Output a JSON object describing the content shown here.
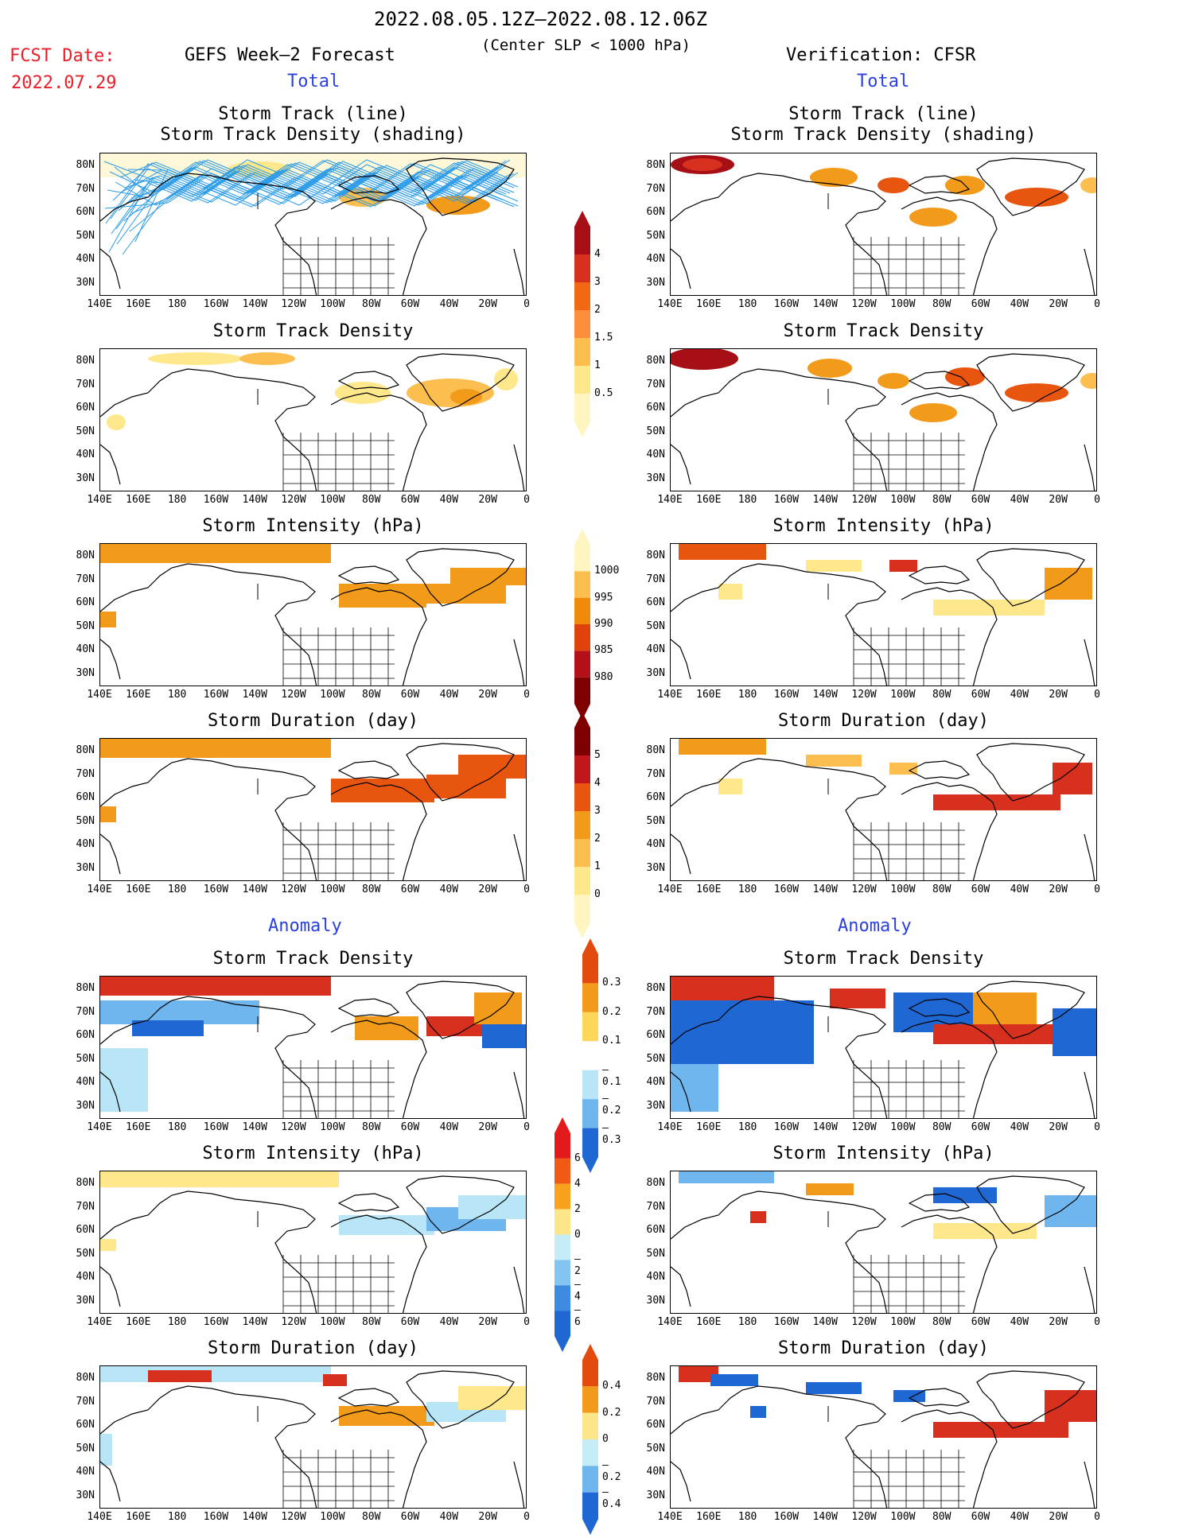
{
  "header": {
    "date_range": "2022.08.05.12Z–2022.08.12.06Z",
    "subtitle": "(Center SLP < 1000 hPa)",
    "fcst_label": "FCST Date:",
    "fcst_date": "2022.07.29",
    "left_model": "GEFS Week–2 Forecast",
    "right_model": "Verification: CFSR",
    "total_label": "Total",
    "anomaly_label": "Anomaly"
  },
  "panels": {
    "track_title_1": "Storm Track (line)",
    "track_title_2": "Storm Track Density (shading)",
    "density": "Storm Track Density",
    "intensity": "Storm Intensity (hPa)",
    "duration": "Storm Duration (day)"
  },
  "axes": {
    "lat_labels": [
      "80N",
      "70N",
      "60N",
      "50N",
      "40N",
      "30N"
    ],
    "lon_labels": [
      "140E",
      "160E",
      "180",
      "160W",
      "140W",
      "120W",
      "100W",
      "80W",
      "60W",
      "40W",
      "20W",
      "0"
    ]
  },
  "colorbars": {
    "density_total": {
      "labels": [
        "4",
        "3",
        "2",
        "1.5",
        "1",
        "0.5"
      ],
      "colors": [
        "#a50f15",
        "#d7301f",
        "#f16913",
        "#fd8d3c",
        "#fdbe50",
        "#fee88b",
        "#fff5c0"
      ]
    },
    "intensity_total": {
      "labels": [
        "1000",
        "995",
        "990",
        "985",
        "980"
      ],
      "colors": [
        "#fff5c0",
        "#fdbe50",
        "#f08a0a",
        "#e0420e",
        "#b3101a",
        "#7f0000"
      ]
    },
    "duration_total": {
      "labels": [
        "5",
        "4",
        "3",
        "2",
        "1",
        "0"
      ],
      "colors": [
        "#7f0000",
        "#c0171c",
        "#e8550f",
        "#f29a1a",
        "#fdbe50",
        "#fee88b",
        "#fff5c0"
      ]
    },
    "density_anom": {
      "labels": [
        "0.3",
        "0.2",
        "0.1",
        "–0.1",
        "–0.2",
        "–0.3"
      ],
      "colors": [
        "#e34a0e",
        "#f29a1a",
        "#fdd75a",
        "#ffffff",
        "#b8e6f6",
        "#6fb6ef",
        "#1f67d2"
      ]
    },
    "intensity_anom": {
      "labels": [
        "6",
        "4",
        "2",
        "0",
        "–2",
        "–4",
        "–6"
      ],
      "colors": [
        "#e31a1c",
        "#f05a14",
        "#f7a21a",
        "#fde58a",
        "#c6ecf8",
        "#84c4f0",
        "#3d8be0",
        "#1f67d2"
      ]
    },
    "duration_anom": {
      "labels": [
        "0.4",
        "0.2",
        "0",
        "–0.2",
        "–0.4"
      ],
      "colors": [
        "#e34a0e",
        "#f29a1a",
        "#fde58a",
        "#c6ecf8",
        "#6fb6ef",
        "#1f67d2"
      ]
    }
  },
  "colors": {
    "title_red": "#e8202a",
    "label_blue": "#2a3fe0",
    "track_line": "#2b9be8"
  }
}
